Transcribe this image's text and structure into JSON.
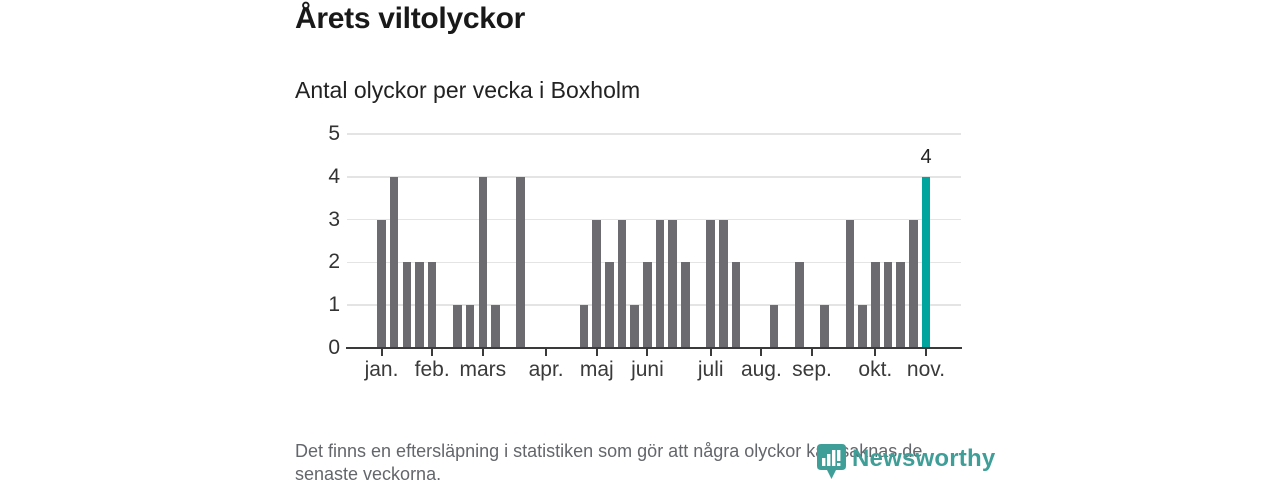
{
  "title": "Årets viltolyckor",
  "subtitle": "Antal olyckor per vecka i Boxholm",
  "footer": "Det finns en eftersläpning i statistiken som gör att några olyckor kan saknas de senaste veckorna.",
  "logo": {
    "name": "Newsworthy",
    "icon": "newsworthy-pennant-barchart-icon",
    "color": "#3f9f98"
  },
  "colors": {
    "bar": "#6b6b70",
    "highlight": "#00a59d",
    "grid": "#e4e4e4",
    "axis": "#3a3a3a",
    "text": "#333333"
  },
  "chart_data": {
    "type": "bar",
    "title": "Årets viltolyckor",
    "subtitle": "Antal olyckor per vecka i Boxholm",
    "xlabel": "",
    "ylabel": "",
    "x_unit": "vecka (week of year)",
    "values": [
      3,
      4,
      2,
      2,
      2,
      0,
      1,
      1,
      4,
      1,
      0,
      4,
      0,
      0,
      0,
      0,
      1,
      3,
      2,
      3,
      1,
      2,
      3,
      3,
      2,
      0,
      3,
      3,
      2,
      0,
      0,
      1,
      0,
      2,
      0,
      1,
      0,
      3,
      1,
      2,
      2,
      2,
      3,
      4
    ],
    "highlight_index": 43,
    "highlight_label": "4",
    "ylim": [
      0,
      5
    ],
    "y_ticks": [
      0,
      1,
      2,
      3,
      4,
      5
    ],
    "grid": true,
    "legend": false,
    "month_ticks": [
      {
        "slot": 0,
        "label": "jan."
      },
      {
        "slot": 4,
        "label": "feb."
      },
      {
        "slot": 8,
        "label": "mars"
      },
      {
        "slot": 13,
        "label": "apr."
      },
      {
        "slot": 17,
        "label": "maj"
      },
      {
        "slot": 21,
        "label": "juni"
      },
      {
        "slot": 26,
        "label": "juli"
      },
      {
        "slot": 30,
        "label": "aug."
      },
      {
        "slot": 34,
        "label": "sep."
      },
      {
        "slot": 39,
        "label": "okt."
      },
      {
        "slot": 43,
        "label": "nov."
      }
    ]
  }
}
